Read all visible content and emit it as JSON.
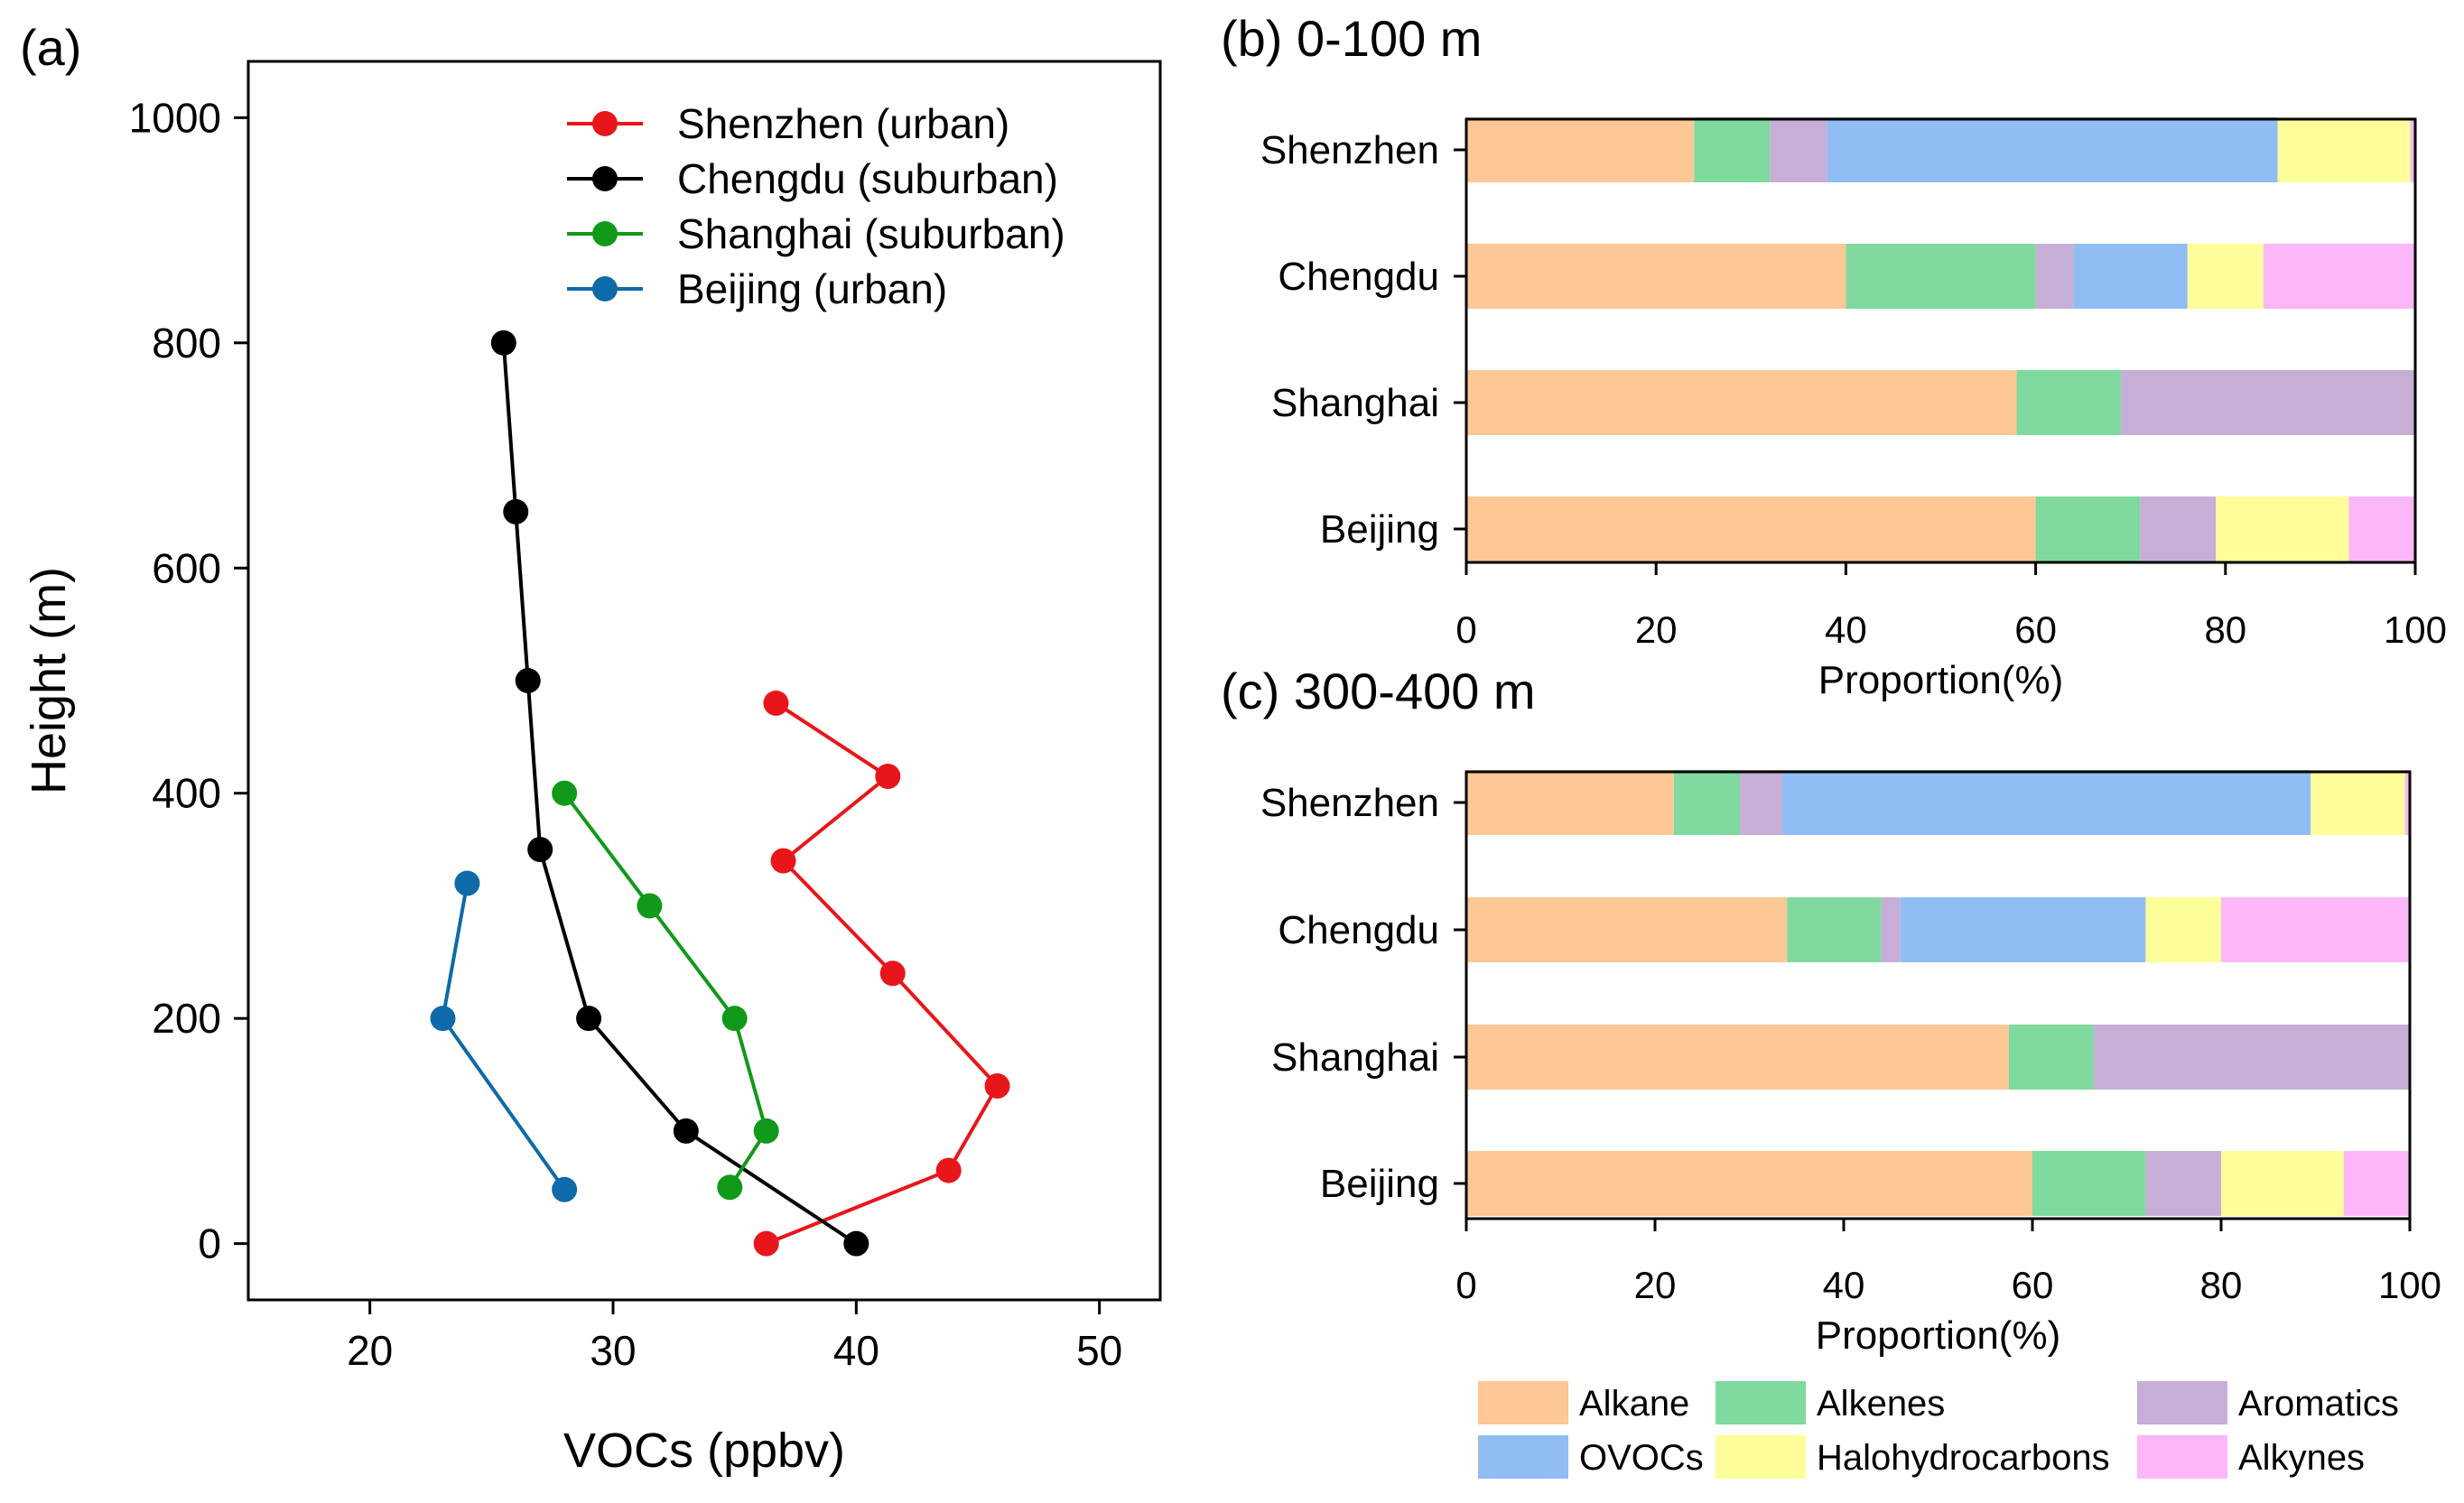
{
  "chart_data": [
    {
      "panel_label": "(a)",
      "type": "line",
      "xlabel": "VOCs (ppbv)",
      "ylabel": "Height (m)",
      "xlim": [
        15,
        52.5
      ],
      "ylim": [
        -50,
        1050
      ],
      "xticks": [
        20,
        30,
        40,
        50
      ],
      "yticks": [
        0,
        200,
        400,
        600,
        800,
        1000
      ],
      "legend_position": "top-right",
      "series": [
        {
          "name": "Shenzhen (urban)",
          "color": "#e8161b",
          "x": [
            36.3,
            43.8,
            45.8,
            41.5,
            37.0,
            41.3,
            36.7
          ],
          "y": [
            0,
            65,
            140,
            240,
            340,
            415,
            480
          ]
        },
        {
          "name": "Chengdu (suburban)",
          "color": "#000000",
          "x": [
            40.0,
            33.0,
            29.0,
            27.0,
            26.5,
            26.0,
            25.5
          ],
          "y": [
            0,
            100,
            200,
            350,
            500,
            650,
            800
          ]
        },
        {
          "name": "Shanghai (suburban)",
          "color": "#11991a",
          "x": [
            34.8,
            36.3,
            35.0,
            31.5,
            28.0
          ],
          "y": [
            50,
            100,
            200,
            300,
            400
          ]
        },
        {
          "name": "Beijing (urban)",
          "color": "#0e6aa8",
          "x": [
            28.0,
            23.0,
            24.0
          ],
          "y": [
            48,
            200,
            320
          ]
        }
      ]
    },
    {
      "panel_label": "(b) 0-100 m",
      "type": "bar",
      "orientation": "horizontal-stacked",
      "xlabel": "Proportion(%)",
      "xlim": [
        0,
        100
      ],
      "xticks": [
        0,
        20,
        40,
        60,
        80,
        100
      ],
      "categories": [
        "Shenzhen",
        "Chengdu",
        "Shanghai",
        "Beijing"
      ],
      "series": [
        {
          "name": "Alkane",
          "color": "#fdc796",
          "values": [
            24,
            40,
            58,
            60
          ]
        },
        {
          "name": "Alkenes",
          "color": "#80d99e",
          "values": [
            8,
            20,
            11,
            11
          ]
        },
        {
          "name": "Aromatics",
          "color": "#c6aed6",
          "values": [
            6,
            4,
            31,
            8
          ]
        },
        {
          "name": "OVOCs",
          "color": "#90bdf4",
          "values": [
            47.5,
            12,
            0,
            0
          ]
        },
        {
          "name": "Halohydrocarbons",
          "color": "#fdfd9a",
          "values": [
            14,
            8,
            0,
            14
          ]
        },
        {
          "name": "Alkynes",
          "color": "#fbb7f7",
          "values": [
            0.5,
            16,
            0,
            7
          ]
        }
      ]
    },
    {
      "panel_label": "(c) 300-400 m",
      "type": "bar",
      "orientation": "horizontal-stacked",
      "xlabel": "Proportion(%)",
      "xlim": [
        0,
        100
      ],
      "xticks": [
        0,
        20,
        40,
        60,
        80,
        100
      ],
      "categories": [
        "Shenzhen",
        "Chengdu",
        "Shanghai",
        "Beijing"
      ],
      "series": [
        {
          "name": "Alkane",
          "color": "#fdc796",
          "values": [
            22,
            34,
            57.5,
            60
          ]
        },
        {
          "name": "Alkenes",
          "color": "#80d99e",
          "values": [
            7,
            10,
            9,
            12
          ]
        },
        {
          "name": "Aromatics",
          "color": "#c6aed6",
          "values": [
            4.5,
            2,
            33.5,
            8
          ]
        },
        {
          "name": "OVOCs",
          "color": "#90bdf4",
          "values": [
            56,
            26,
            0,
            0
          ]
        },
        {
          "name": "Halohydrocarbons",
          "color": "#fdfd9a",
          "values": [
            10,
            8,
            0,
            13
          ]
        },
        {
          "name": "Alkynes",
          "color": "#fbb7f7",
          "values": [
            0.5,
            20,
            0,
            7
          ]
        }
      ]
    }
  ],
  "category_legend": [
    "Alkane",
    "Alkenes",
    "Aromatics",
    "OVOCs",
    "Halohydrocarbons",
    "Alkynes"
  ]
}
